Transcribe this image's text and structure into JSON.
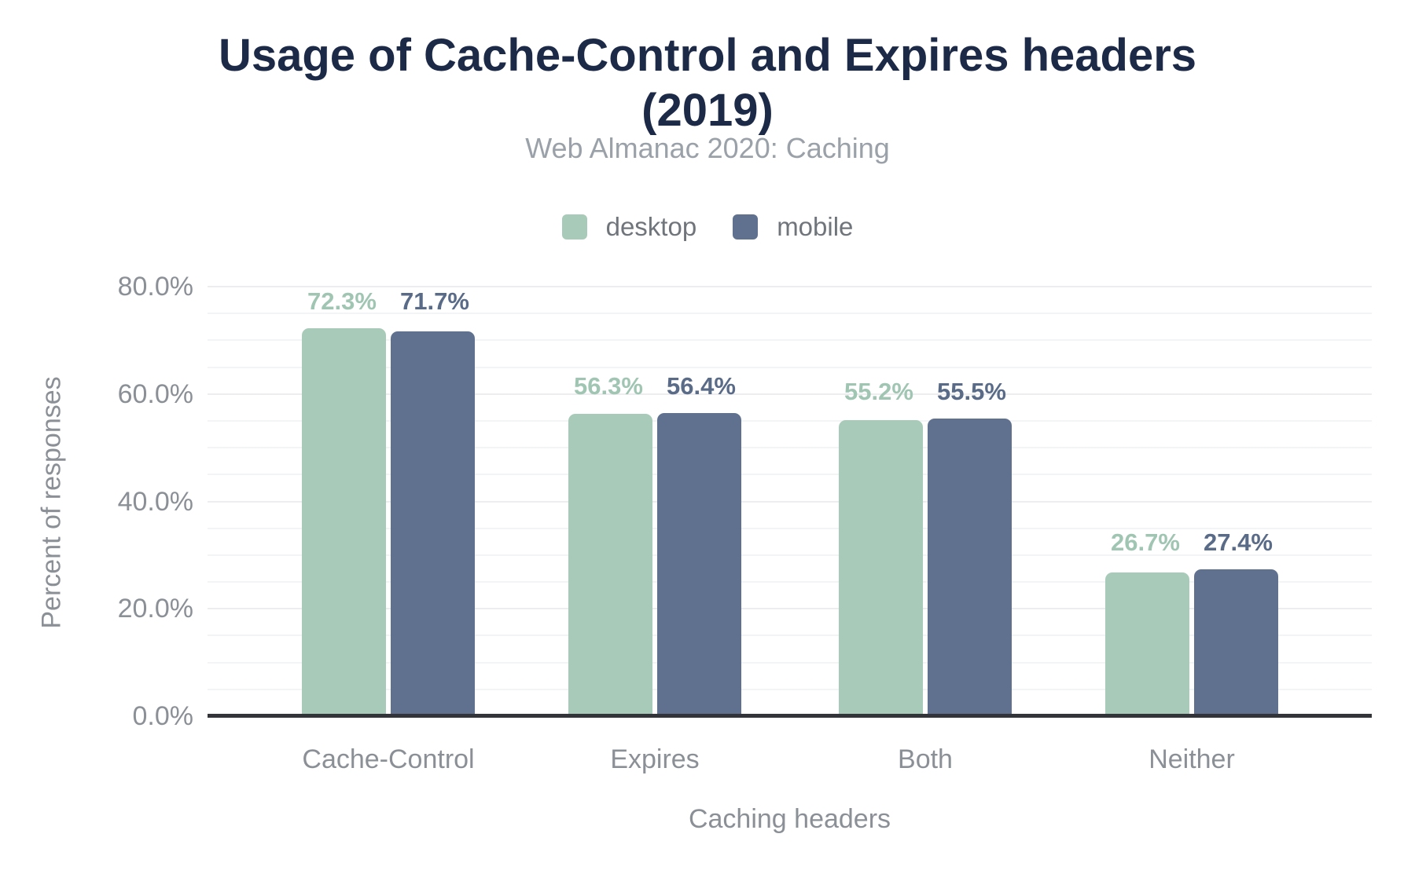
{
  "chart_data": {
    "type": "bar",
    "title": "Usage of Cache-Control and Expires headers (2019)",
    "subtitle": "Web Almanac 2020: Caching",
    "categories": [
      "Cache-Control",
      "Expires",
      "Both",
      "Neither"
    ],
    "series": [
      {
        "name": "desktop",
        "color": "#a8cab9",
        "label_color": "#a0c5b2",
        "values": [
          72.3,
          56.3,
          55.2,
          26.7
        ],
        "labels": [
          "72.3%",
          "56.3%",
          "55.2%",
          "26.7%"
        ]
      },
      {
        "name": "mobile",
        "color": "#5f718f",
        "label_color": "#5a6b88",
        "values": [
          71.7,
          56.4,
          55.5,
          27.4
        ],
        "labels": [
          "71.7%",
          "56.4%",
          "55.5%",
          "27.4%"
        ]
      }
    ],
    "xlabel": "Caching headers",
    "ylabel": "Percent of responses",
    "ylim": [
      0,
      80
    ],
    "y_ticks": [
      {
        "value": 0,
        "label": "0.0%"
      },
      {
        "value": 20,
        "label": "20.0%"
      },
      {
        "value": 40,
        "label": "40.0%"
      },
      {
        "value": 60,
        "label": "60.0%"
      },
      {
        "value": 80,
        "label": "80.0%"
      }
    ],
    "gridline_step": 5,
    "grid": true,
    "legend_position": "top",
    "colors": {
      "title": "#1c2a47",
      "subtitle": "#9aa1a8",
      "axis_text": "#8b9097",
      "axis_line": "#32343a",
      "gridline_minor": "#f3f4f6",
      "gridline_major": "#ededf0",
      "background": "#ffffff"
    }
  }
}
